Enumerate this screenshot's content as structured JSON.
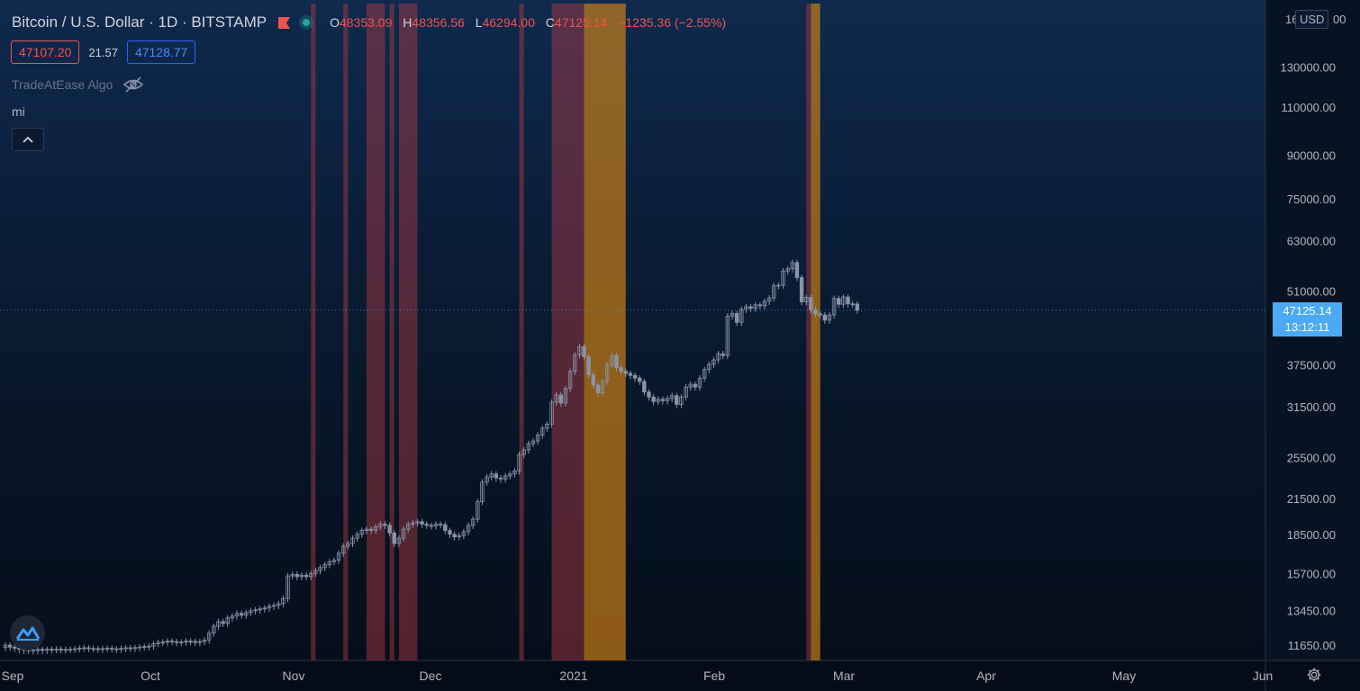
{
  "header": {
    "symbol_title": "Bitcoin / U.S. Dollar · 1D · BITSTAMP",
    "ohlc": [
      {
        "key": "O",
        "value": "48353.09"
      },
      {
        "key": "H",
        "value": "48356.56"
      },
      {
        "key": "L",
        "value": "46294.00"
      },
      {
        "key": "C",
        "value": "47125.14"
      }
    ],
    "change": "−1235.36 (−2.55%)",
    "bid": "47107.20",
    "spread": "21.57",
    "ask": "47128.77",
    "indicator_name": "TradeAtEase Algo",
    "indicator_short": "mi"
  },
  "price_scale": {
    "currency": "USD",
    "top_label_partial": "16",
    "top_label_suffix": "00",
    "ticks": [
      "130000.00",
      "110000.00",
      "90000.00",
      "75000.00",
      "63000.00",
      "51000.00",
      "37500.00",
      "31500.00",
      "25500.00",
      "21500.00",
      "18500.00",
      "15700.00",
      "13450.00",
      "11650.00"
    ],
    "last_price": "47125.14",
    "countdown": "13:12:11"
  },
  "time_axis": {
    "labels": [
      "Sep",
      "Oct",
      "Nov",
      "Dec",
      "2021",
      "Feb",
      "Mar",
      "Apr",
      "May",
      "Jun"
    ]
  },
  "colors": {
    "bg_top": "#0f2a4d",
    "bg_bottom": "#050d1a",
    "candle": "#8a93a6",
    "band_red": "#b43c44",
    "band_red_dark": "#6a2838",
    "band_orange": "#e08a12",
    "bid": "#ef5350",
    "ask": "#2962ff",
    "last_price": "#4caaf5",
    "text": "#b2b5be"
  },
  "chart_data": {
    "type": "candlestick",
    "scale": "log",
    "ylim": [
      10500,
      170000
    ],
    "dates_start": "2020-08-29",
    "closes": [
      11650,
      11550,
      11500,
      11450,
      11400,
      11420,
      11380,
      11450,
      11400,
      11450,
      11430,
      11460,
      11420,
      11440,
      11450,
      11470,
      11500,
      11520,
      11490,
      11480,
      11450,
      11480,
      11500,
      11470,
      11450,
      11490,
      11520,
      11500,
      11530,
      11560,
      11580,
      11600,
      11720,
      11780,
      11800,
      11850,
      11820,
      11780,
      11800,
      11850,
      11830,
      11780,
      11820,
      11900,
      12250,
      12600,
      12850,
      12750,
      13050,
      13150,
      13300,
      13200,
      13350,
      13450,
      13500,
      13550,
      13600,
      13700,
      13750,
      13850,
      14150,
      15550,
      15650,
      15500,
      15600,
      15500,
      15700,
      15900,
      16100,
      16300,
      16500,
      16600,
      17100,
      17600,
      17800,
      18200,
      18500,
      18800,
      18900,
      18800,
      19100,
      19300,
      19200,
      18600,
      17800,
      18200,
      18900,
      19300,
      19400,
      19500,
      19300,
      19200,
      19150,
      19300,
      19250,
      18800,
      18500,
      18300,
      18400,
      18700,
      19200,
      19700,
      21200,
      23000,
      23500,
      23800,
      23400,
      23300,
      23600,
      23800,
      24100,
      25800,
      26300,
      27000,
      27300,
      28000,
      28800,
      29300,
      32100,
      33100,
      32000,
      34000,
      36500,
      39100,
      40500,
      38800,
      36000,
      34500,
      33400,
      35000,
      37500,
      39000,
      37100,
      36500,
      36200,
      35900,
      35500,
      35000,
      33500,
      32800,
      32200,
      32500,
      32300,
      32600,
      33000,
      31800,
      32800,
      34200,
      34600,
      34200,
      35500,
      36800,
      37600,
      38300,
      39300,
      39000,
      46000,
      46500,
      44800,
      47300,
      47800,
      47500,
      48200,
      48000,
      48900,
      49600,
      52200,
      52300,
      55500,
      56000,
      57500,
      54000,
      48800,
      49700,
      47200,
      46400,
      46200,
      45200,
      46200,
      49500,
      48300,
      49800,
      48400,
      48350,
      47125
    ]
  },
  "bands": [
    {
      "from": "2020-11-03",
      "to": "2020-11-04",
      "tone": "red"
    },
    {
      "from": "2020-11-10",
      "to": "2020-11-11",
      "tone": "red"
    },
    {
      "from": "2020-11-15",
      "to": "2020-11-19",
      "tone": "red"
    },
    {
      "from": "2020-11-20",
      "to": "2020-11-21",
      "tone": "red"
    },
    {
      "from": "2020-11-22",
      "to": "2020-11-25",
      "tone": "red"
    },
    {
      "from": "2020-11-25",
      "to": "2020-11-26",
      "tone": "red"
    },
    {
      "from": "2020-12-18",
      "to": "2020-12-19",
      "tone": "red"
    },
    {
      "from": "2020-12-25",
      "to": "2021-01-01",
      "tone": "red"
    },
    {
      "from": "2021-01-01",
      "to": "2021-01-10",
      "tone": "orange"
    },
    {
      "from": "2021-02-18",
      "to": "2021-02-19",
      "tone": "red"
    },
    {
      "from": "2021-02-19",
      "to": "2021-02-21",
      "tone": "orange"
    }
  ]
}
